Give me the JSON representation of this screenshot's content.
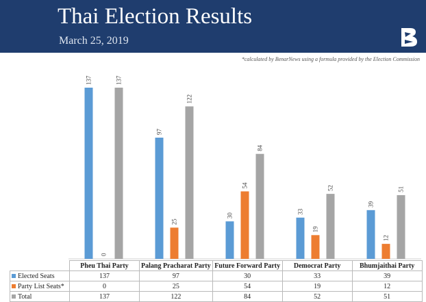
{
  "header": {
    "title": "Thai Election Results",
    "subtitle": "March 25, 2019",
    "footnote": "*calculated by BenarNews using a formula provided by the Election Commission"
  },
  "logo": {
    "icon": "benarnews-logo-icon"
  },
  "chart_data": {
    "type": "bar",
    "categories": [
      "Pheu Thai Party",
      "Palang Pracharat Party",
      "Future Forward Party",
      "Democrat Party",
      "Bhumjaithai Party"
    ],
    "series": [
      {
        "name": "Elected Seats",
        "color": "#5b9bd5",
        "values": [
          137,
          97,
          30,
          33,
          39
        ]
      },
      {
        "name": "Party List Seats*",
        "color": "#ed7d31",
        "values": [
          0,
          25,
          54,
          19,
          12
        ]
      },
      {
        "name": "Total",
        "color": "#a5a5a5",
        "values": [
          137,
          122,
          84,
          52,
          51
        ]
      }
    ],
    "ylim": [
      0,
      137
    ],
    "grid": false,
    "legend": "data-table-bottom"
  }
}
